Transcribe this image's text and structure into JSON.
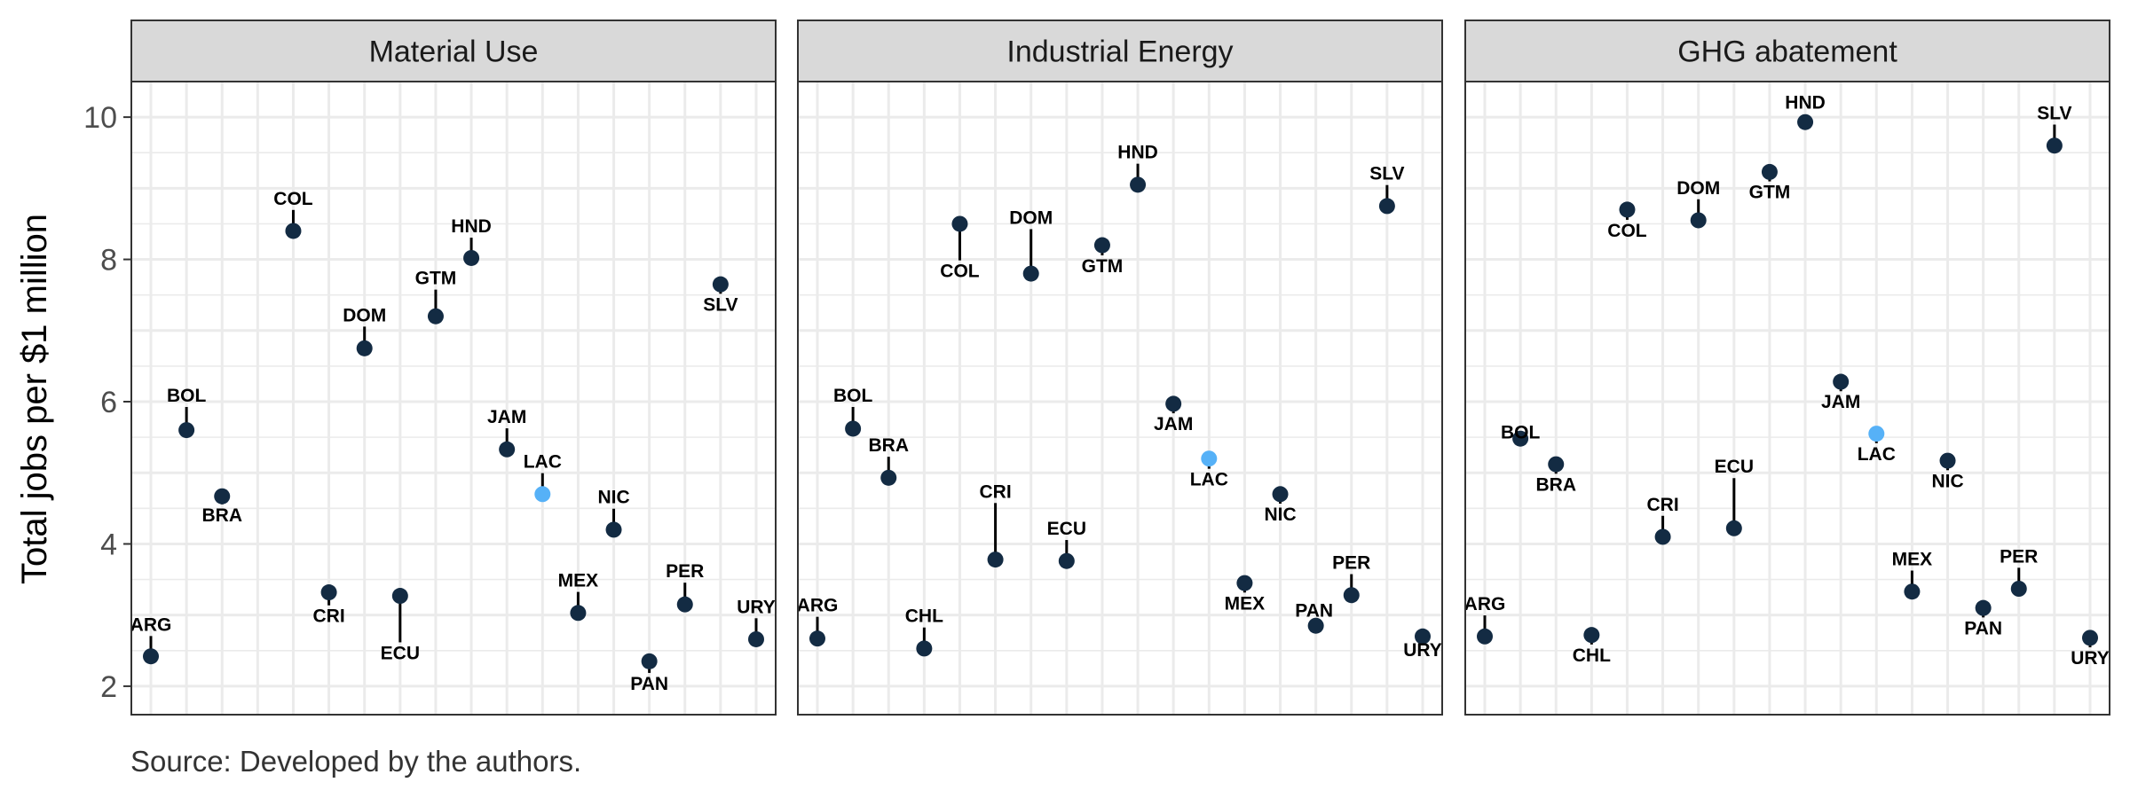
{
  "chart_data": {
    "type": "scatter",
    "ylabel": "Total jobs per $1 million",
    "caption": "Source: Developed by the authors.",
    "ylim": [
      1.6,
      10.5
    ],
    "yticks": [
      2,
      4,
      6,
      8,
      10
    ],
    "x_categories": [
      "ARG",
      "BOL",
      "BRA",
      "CHL",
      "COL",
      "CRI",
      "DOM",
      "ECU",
      "GTM",
      "HND",
      "JAM",
      "LAC",
      "MEX",
      "NIC",
      "PAN",
      "PER",
      "SLV",
      "URY"
    ],
    "colors": {
      "country": "#132b43",
      "aggregate": "#56b1f7",
      "strip_bg": "#d9d9d9",
      "grid": "#ebebeb",
      "border": "#333333"
    },
    "panels": [
      {
        "title": "Material Use",
        "points": [
          {
            "label": "ARG",
            "y": 2.42,
            "ly": 2.78
          },
          {
            "label": "BOL",
            "y": 5.6,
            "ly": 6.0
          },
          {
            "label": "BRA",
            "y": 4.67,
            "ly": 4.32
          },
          {
            "label": "COL",
            "y": 8.4,
            "ly": 8.77
          },
          {
            "label": "CRI",
            "y": 3.32,
            "ly": 2.9
          },
          {
            "label": "DOM",
            "y": 6.75,
            "ly": 7.13
          },
          {
            "label": "ECU",
            "y": 3.27,
            "ly": 2.38
          },
          {
            "label": "GTM",
            "y": 7.2,
            "ly": 7.65
          },
          {
            "label": "HND",
            "y": 8.02,
            "ly": 8.38
          },
          {
            "label": "JAM",
            "y": 5.33,
            "ly": 5.7
          },
          {
            "label": "LAC",
            "y": 4.7,
            "ly": 5.07
          },
          {
            "label": "NIC",
            "y": 4.2,
            "ly": 4.57
          },
          {
            "label": "MEX",
            "y": 3.03,
            "ly": 3.4
          },
          {
            "label": "PER",
            "y": 3.15,
            "ly": 3.53
          },
          {
            "label": "PAN",
            "y": 2.35,
            "ly": 1.95
          },
          {
            "label": "SLV",
            "y": 7.65,
            "ly": 7.28
          },
          {
            "label": "URY",
            "y": 2.66,
            "ly": 3.03
          }
        ]
      },
      {
        "title": "Industrial Energy",
        "points": [
          {
            "label": "ARG",
            "y": 2.67,
            "ly": 3.05
          },
          {
            "label": "BOL",
            "y": 5.62,
            "ly": 6.0
          },
          {
            "label": "BRA",
            "y": 4.93,
            "ly": 5.3
          },
          {
            "label": "CHL",
            "y": 2.53,
            "ly": 2.9
          },
          {
            "label": "COL",
            "y": 8.5,
            "ly": 7.75
          },
          {
            "label": "CRI",
            "y": 3.78,
            "ly": 4.65
          },
          {
            "label": "DOM",
            "y": 7.8,
            "ly": 8.5
          },
          {
            "label": "ECU",
            "y": 3.76,
            "ly": 4.13
          },
          {
            "label": "GTM",
            "y": 8.2,
            "ly": 7.82
          },
          {
            "label": "HND",
            "y": 9.05,
            "ly": 9.42
          },
          {
            "label": "JAM",
            "y": 5.97,
            "ly": 5.6
          },
          {
            "label": "LAC",
            "y": 5.2,
            "ly": 4.82
          },
          {
            "label": "NIC",
            "y": 4.7,
            "ly": 4.33
          },
          {
            "label": "MEX",
            "y": 3.45,
            "ly": 3.08
          },
          {
            "label": "PER",
            "y": 3.28,
            "ly": 3.65
          },
          {
            "label": "PAN",
            "y": 2.85,
            "ly": 2.98
          },
          {
            "label": "SLV",
            "y": 8.75,
            "ly": 9.12
          },
          {
            "label": "URY",
            "y": 2.7,
            "ly": 2.42
          }
        ]
      },
      {
        "title": "GHG abatement",
        "points": [
          {
            "label": "ARG",
            "y": 2.7,
            "ly": 3.07
          },
          {
            "label": "BOL",
            "y": 5.48,
            "ly": 5.48
          },
          {
            "label": "BRA",
            "y": 5.12,
            "ly": 4.75
          },
          {
            "label": "CHL",
            "y": 2.72,
            "ly": 2.35
          },
          {
            "label": "COL",
            "y": 8.7,
            "ly": 8.32
          },
          {
            "label": "CRI",
            "y": 4.1,
            "ly": 4.47
          },
          {
            "label": "DOM",
            "y": 8.55,
            "ly": 8.92
          },
          {
            "label": "ECU",
            "y": 4.22,
            "ly": 5.0
          },
          {
            "label": "GTM",
            "y": 9.23,
            "ly": 8.86
          },
          {
            "label": "HND",
            "y": 9.93,
            "ly": 10.12
          },
          {
            "label": "JAM",
            "y": 6.28,
            "ly": 5.91
          },
          {
            "label": "LAC",
            "y": 5.55,
            "ly": 5.18
          },
          {
            "label": "MEX",
            "y": 3.33,
            "ly": 3.7
          },
          {
            "label": "NIC",
            "y": 5.17,
            "ly": 4.8
          },
          {
            "label": "PAN",
            "y": 3.1,
            "ly": 2.73
          },
          {
            "label": "PER",
            "y": 3.37,
            "ly": 3.74
          },
          {
            "label": "SLV",
            "y": 9.6,
            "ly": 9.97
          },
          {
            "label": "URY",
            "y": 2.68,
            "ly": 2.31
          }
        ]
      }
    ]
  }
}
